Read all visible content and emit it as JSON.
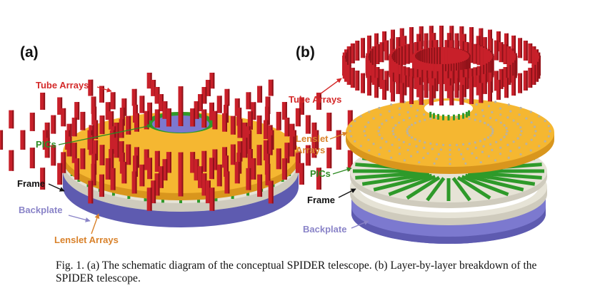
{
  "figure": {
    "panels": [
      {
        "id": "a",
        "label": "(a)",
        "annotations": [
          {
            "key": "tube",
            "text": "Tube Arrays",
            "color": "#d42a2a"
          },
          {
            "key": "pics",
            "text": "PICs",
            "color": "#2e8b22"
          },
          {
            "key": "frame",
            "text": "Frame",
            "color": "#111111"
          },
          {
            "key": "backplate",
            "text": "Backplate",
            "color": "#8a84c8"
          },
          {
            "key": "lenslet",
            "text": "Lenslet Arrays",
            "color": "#d9822b"
          }
        ]
      },
      {
        "id": "b",
        "label": "(b)",
        "annotations": [
          {
            "key": "tube",
            "text": "Tube Arrays",
            "color": "#d42a2a"
          },
          {
            "key": "lenslet1",
            "text": "Lenslet",
            "color": "#d9822b"
          },
          {
            "key": "lenslet2",
            "text": "Arrays",
            "color": "#d9822b"
          },
          {
            "key": "pics",
            "text": "PICs",
            "color": "#2e8b22"
          },
          {
            "key": "frame",
            "text": "Frame",
            "color": "#111111"
          },
          {
            "key": "backplate",
            "text": "Backplate",
            "color": "#8a84c8"
          }
        ]
      }
    ],
    "colors": {
      "tube": "#c8202a",
      "tube_dark": "#8f1219",
      "lenslet": "#f5b731",
      "lenslet_dark": "#d9961d",
      "pic": "#2e9a2a",
      "frame": "#e6e3d6",
      "backplate": "#7c79cf",
      "backplate_dark": "#5e5bb0"
    },
    "caption": "Fig. 1. (a) The schematic diagram of the conceptual SPIDER telescope. (b) Layer-by-layer breakdown of the SPIDER telescope."
  }
}
